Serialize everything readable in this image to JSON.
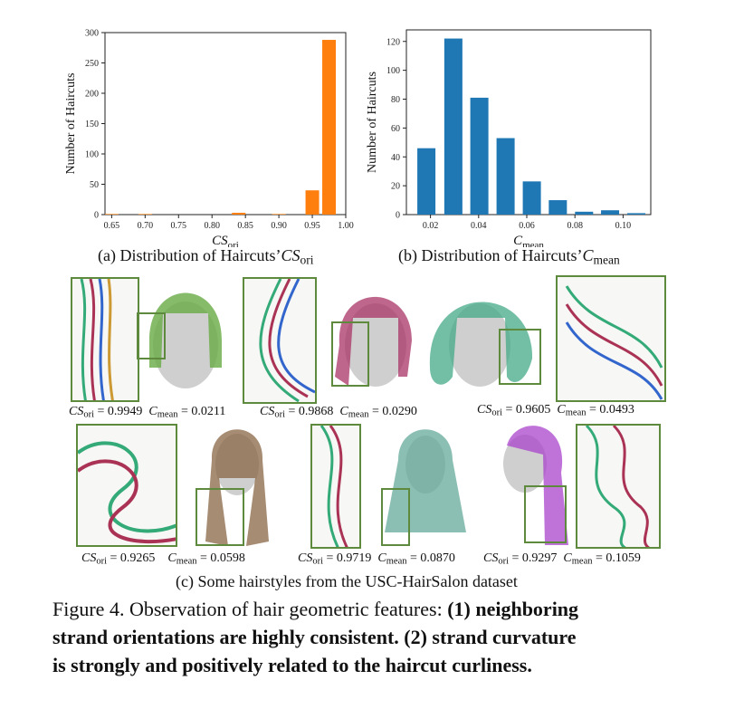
{
  "chart_data": [
    {
      "type": "bar",
      "x_tick_labels": [
        "0.65",
        "0.70",
        "0.75",
        "0.80",
        "0.85",
        "0.90",
        "0.95",
        "1.00"
      ],
      "bar_centers": [
        0.65,
        0.7,
        0.84,
        0.9,
        0.95,
        0.975
      ],
      "values": [
        1,
        1,
        3,
        1,
        40,
        288
      ],
      "y_ticks": [
        "0",
        "50",
        "100",
        "150",
        "200",
        "250",
        "300"
      ],
      "ylabel": "Number of Haircuts",
      "xlabel_main": "CS",
      "xlabel_sub": "ori",
      "xlim": [
        0.64,
        1.0
      ],
      "ylim": [
        0,
        300
      ],
      "color": "#ff7f0e",
      "grid": false
    },
    {
      "type": "bar",
      "x_tick_labels": [
        "0.02",
        "0.04",
        "0.06",
        "0.08",
        "0.10"
      ],
      "bar_centers": [
        0.0183,
        0.0295,
        0.0403,
        0.0512,
        0.0621,
        0.0729,
        0.0838,
        0.0946,
        0.1055
      ],
      "values": [
        46,
        122,
        81,
        53,
        23,
        10,
        2,
        3,
        1
      ],
      "y_ticks": [
        "0",
        "20",
        "40",
        "60",
        "80",
        "100",
        "120"
      ],
      "ylabel": "Number of Haircuts",
      "xlabel_main": "C",
      "xlabel_sub": "mean",
      "xlim": [
        0.01,
        0.1115
      ],
      "ylim": [
        0,
        128
      ],
      "color": "#1f77b4",
      "grid": false
    }
  ],
  "subcaptions": {
    "a": "(a) Distribution of Haircuts’",
    "a_math": "CS",
    "a_sub": "ori",
    "b": "(b) Distribution of Haircuts’",
    "b_math": "C",
    "b_sub": "mean",
    "c": "(c) Some hairstyles from the USC-HairSalon dataset"
  },
  "metrics": [
    {
      "cs": "0.9949",
      "cmean": "0.0211"
    },
    {
      "cs": "0.9868",
      "cmean": "0.0290"
    },
    {
      "cs": "0.9605",
      "cmean": "0.0493"
    },
    {
      "cs": "0.9265",
      "cmean": "0.0598"
    },
    {
      "cs": "0.9719",
      "cmean": "0.0870"
    },
    {
      "cs": "0.9297",
      "cmean": "0.1059"
    }
  ],
  "metric_labels": {
    "cs_main": "CS",
    "cs_sub": "ori",
    "c_main": "C",
    "c_sub": "mean",
    "eq": " = "
  },
  "caption": {
    "prefix": "Figure 4. Observation of hair geometric features: ",
    "bold1": "(1) neighboring",
    "line2": "strand orientations are highly consistent. (2) strand curvature",
    "line3": "is strongly and positively related to the haircut curliness."
  },
  "colors": {
    "frame": "#5e8a3e"
  }
}
